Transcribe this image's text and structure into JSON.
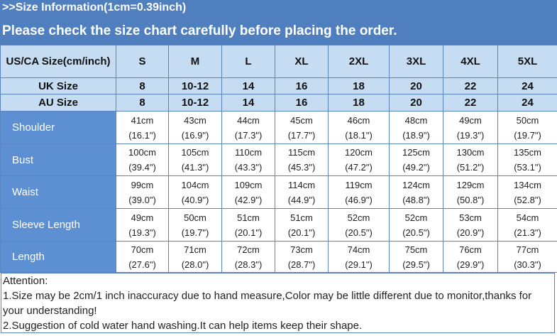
{
  "header": {
    "title": ">>Size Information(1cm=0.39inch)",
    "subtitle": "Please check the size chart carefully before placing the order."
  },
  "table": {
    "head_rows": [
      {
        "label": "US/CA Size(cm/inch)",
        "values": [
          "S",
          "M",
          "L",
          "XL",
          "2XL",
          "3XL",
          "4XL",
          "5XL"
        ]
      },
      {
        "label": "UK Size",
        "values": [
          "8",
          "10-12",
          "14",
          "16",
          "18",
          "20",
          "22",
          "24"
        ]
      },
      {
        "label": "AU Size",
        "values": [
          "8",
          "10-12",
          "14",
          "16",
          "18",
          "20",
          "22",
          "24"
        ]
      }
    ],
    "rows": [
      {
        "label": "Shoulder",
        "cm": [
          "41cm",
          "43cm",
          "44cm",
          "45cm",
          "46cm",
          "48cm",
          "49cm",
          "50cm"
        ],
        "inch": [
          "(16.1\")",
          "(16.9\")",
          "(17.3\")",
          "(17.7\")",
          "(18.1\")",
          "(18.9\")",
          "(19.3\")",
          "(19.7\")"
        ]
      },
      {
        "label": "Bust",
        "cm": [
          "100cm",
          "105cm",
          "110cm",
          "115cm",
          "120cm",
          "125cm",
          "130cm",
          "135cm"
        ],
        "inch": [
          "(39.4\")",
          "(41.3\")",
          "(43.3\")",
          "(45.3\")",
          "(47.2\")",
          "(49.2\")",
          "(51.2\")",
          "(53.1\")"
        ]
      },
      {
        "label": "Waist",
        "cm": [
          "99cm",
          "104cm",
          "109cm",
          "114cm",
          "119cm",
          "124cm",
          "129cm",
          "134cm"
        ],
        "inch": [
          "(39.0\")",
          "(40.9\")",
          "(42.9\")",
          "(44.9\")",
          "(46.9\")",
          "(48.8\")",
          "(50.8\")",
          "(52.8\")"
        ]
      },
      {
        "label": "Sleeve Length",
        "cm": [
          "49cm",
          "50cm",
          "51cm",
          "51cm",
          "52cm",
          "52cm",
          "53cm",
          "54cm"
        ],
        "inch": [
          "(19.3\")",
          "(19.7\")",
          "(20.1\")",
          "(20.1\")",
          "(20.5\")",
          "(20.5\")",
          "(20.9\")",
          "(21.3\")"
        ]
      },
      {
        "label": "Length",
        "cm": [
          "70cm",
          "71cm",
          "72cm",
          "73cm",
          "74cm",
          "75cm",
          "76cm",
          "77cm"
        ],
        "inch": [
          "(27.6\")",
          "(28.0\")",
          "(28.3\")",
          "(28.7\")",
          "(29.1\")",
          "(29.5\")",
          "(29.9\")",
          "(30.3\")"
        ]
      }
    ]
  },
  "attention": {
    "heading": "Attention:",
    "lines": [
      "1.Size may be 2cm/1 inch inaccuracy due to hand measure,Color may be little different due to monitor,thanks for your understanding!",
      "2.Suggestion of cold water hand washing.It can help items keep their shape."
    ]
  }
}
